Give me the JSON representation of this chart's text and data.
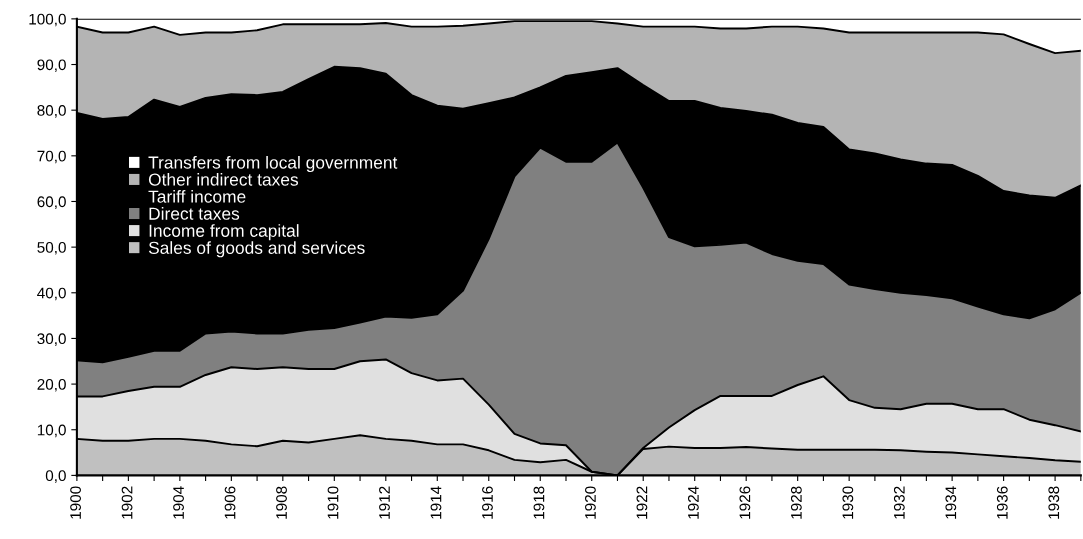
{
  "chart_data": {
    "type": "area",
    "stacked": true,
    "legend": "top left",
    "grid": false,
    "categories": [
      "1900",
      null,
      "1902",
      null,
      "1904",
      null,
      "1906",
      null,
      "1908",
      null,
      "1910",
      null,
      "1912",
      null,
      "1914",
      null,
      "1916",
      null,
      "1918",
      null,
      "1920",
      null,
      "1922",
      null,
      "1924",
      null,
      "1926",
      null,
      "1928",
      null,
      "1930",
      null,
      "1932",
      null,
      "1934",
      null,
      "1936",
      null,
      "1938",
      null
    ],
    "ylim": [
      0,
      100
    ],
    "yticks": [
      {
        "value": 0,
        "label": "0,0"
      },
      {
        "value": 10,
        "label": "10,0"
      },
      {
        "value": 20,
        "label": "20,0"
      },
      {
        "value": 30,
        "label": "30,0"
      },
      {
        "value": 40,
        "label": "40,0"
      },
      {
        "value": 50,
        "label": "50,0"
      },
      {
        "value": 60,
        "label": "60,0"
      },
      {
        "value": 70,
        "label": "70,0"
      },
      {
        "value": 80,
        "label": "80,0"
      },
      {
        "value": 90,
        "label": "90,0"
      },
      {
        "value": 100,
        "label": "100,0"
      }
    ],
    "series": [
      {
        "name": "Sales of goods and services",
        "color": "#c0c0c0",
        "values": [
          8.0,
          7.6,
          7.6,
          8.0,
          8.0,
          7.6,
          6.8,
          6.4,
          7.6,
          7.2,
          8.0,
          8.8,
          8.0,
          7.6,
          6.8,
          6.8,
          5.5,
          3.4,
          2.9,
          3.4,
          0.8,
          0,
          5.8,
          6.3,
          6.0,
          6.0,
          6.2,
          5.9,
          5.6,
          5.6,
          5.6,
          5.6,
          5.5,
          5.2,
          5.0,
          4.6,
          4.2,
          3.8,
          3.3,
          3.0
        ]
      },
      {
        "name": "Income from capital",
        "color": "#e0e0e0",
        "values": [
          9.3,
          9.7,
          10.9,
          11.4,
          11.4,
          14.4,
          16.9,
          16.9,
          16.1,
          16.1,
          15.3,
          16.2,
          17.4,
          14.8,
          14.0,
          14.4,
          10.0,
          5.7,
          4.1,
          3.2,
          0,
          0,
          0.2,
          4.2,
          8.3,
          11.4,
          11.2,
          11.5,
          14.2,
          16.1,
          10.9,
          9.2,
          9.0,
          10.5,
          10.7,
          9.9,
          10.3,
          8.4,
          7.7,
          6.6
        ]
      },
      {
        "name": "Direct taxes",
        "color": "#808080",
        "values": [
          7.9,
          7.5,
          7.5,
          7.9,
          7.9,
          9.1,
          7.8,
          7.8,
          7.4,
          8.6,
          9.0,
          8.5,
          9.4,
          12.1,
          14.5,
          19.3,
          36.3,
          56.4,
          64.8,
          62.1,
          67.9,
          72.9,
          57.0,
          41.7,
          35.9,
          33.1,
          33.6,
          31.1,
          27.2,
          24.6,
          25.3,
          26.0,
          25.5,
          23.8,
          23.1,
          22.5,
          20.8,
          22.2,
          25.4,
          30.4
        ]
      },
      {
        "name": "Tariff income",
        "color": "#000000",
        "values": [
          54.2,
          53.3,
          52.5,
          55.0,
          53.4,
          51.6,
          52.0,
          52.2,
          52.9,
          54.9,
          57.2,
          55.7,
          53.2,
          48.8,
          45.7,
          39.8,
          29.7,
          17.3,
          13.2,
          18.8,
          19.6,
          16.3,
          22.5,
          29.8,
          31.8,
          30.0,
          28.8,
          30.5,
          30.2,
          30.0,
          29.6,
          29.7,
          29.2,
          28.8,
          29.2,
          28.6,
          27.0,
          26.9,
          24.4,
          23.5
        ]
      },
      {
        "name": "Other indirect taxes",
        "color": "#b4b4b4",
        "values": [
          18.9,
          18.9,
          18.5,
          16.0,
          15.8,
          14.3,
          13.5,
          14.2,
          14.8,
          12.0,
          9.3,
          9.6,
          11.1,
          15.0,
          17.3,
          18.2,
          17.5,
          16.7,
          14.5,
          12.0,
          11.2,
          9.8,
          12.8,
          16.3,
          16.3,
          17.4,
          18.1,
          19.3,
          21.1,
          21.6,
          25.6,
          26.5,
          27.8,
          28.7,
          29.0,
          31.4,
          34.3,
          33.2,
          31.7,
          29.5
        ]
      },
      {
        "name": "Transfers from local government",
        "color": "#ffffff",
        "values": [
          1.7,
          3.0,
          3.0,
          1.7,
          3.5,
          3.0,
          3.0,
          2.5,
          1.2,
          1.2,
          1.2,
          1.2,
          0.9,
          1.7,
          1.7,
          1.5,
          1.0,
          0.5,
          0.5,
          0.5,
          0.5,
          1.0,
          1.7,
          1.7,
          1.7,
          2.1,
          2.1,
          1.7,
          1.7,
          2.1,
          3.0,
          3.0,
          3.0,
          3.0,
          3.0,
          3.0,
          3.4,
          5.5,
          7.5,
          7.0
        ]
      }
    ]
  }
}
